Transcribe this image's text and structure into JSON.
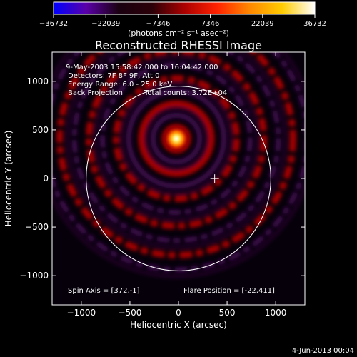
{
  "colorbar": {
    "ticks": [
      "-36732",
      "-22039",
      "-7346",
      "7346",
      "22039",
      "36732"
    ],
    "unit_label": "(photons cm⁻² s⁻¹ asec⁻²)",
    "colors": [
      "#0000ff",
      "#5a00a8",
      "#1a0010",
      "#2a0008",
      "#aa0000",
      "#ff2200",
      "#ff8800",
      "#ffcc00",
      "#ffffff"
    ]
  },
  "title": "Reconstructed RHESSI Image",
  "info": {
    "line1": "9-May-2003 15:58:42.000 to 16:04:42.000",
    "line2": "Detectors: 7F 8F 9F, Att 0",
    "line3": "Energy Range: 6.0 - 25.0 keV",
    "line4a": "Back Projection",
    "line4b": "Total counts: 3.72E+04"
  },
  "footer": {
    "spin_axis": "Spin Axis = [372,-1]",
    "flare_position": "Flare Position = [-22,411]"
  },
  "timestamp": "4-Jun-2013 00:04",
  "chart_data": {
    "type": "heatmap",
    "title": "Reconstructed RHESSI Image",
    "xlabel": "Heliocentric X (arcsec)",
    "ylabel": "Heliocentric Y (arcsec)",
    "xlim": [
      -1300,
      1300
    ],
    "ylim": [
      -1300,
      1300
    ],
    "x_ticks": [
      -1000,
      -500,
      0,
      500,
      1000
    ],
    "y_ticks": [
      -1000,
      -500,
      0,
      500,
      1000
    ],
    "x_tick_labels": [
      "−1000",
      "−500",
      "0",
      "500",
      "1000"
    ],
    "y_tick_labels": [
      "−1000",
      "−500",
      "0",
      "500",
      "1000"
    ],
    "color_range": [
      -36732,
      36732
    ],
    "flare_position": [
      -22,
      411
    ],
    "spin_axis": [
      372,
      -1
    ],
    "solar_disk": {
      "center": [
        0,
        0
      ],
      "radius_arcsec": 950
    },
    "fringe_rings_arcsec": [
      120,
      240,
      360,
      490,
      620,
      760,
      900,
      1050,
      1200,
      1350
    ]
  }
}
